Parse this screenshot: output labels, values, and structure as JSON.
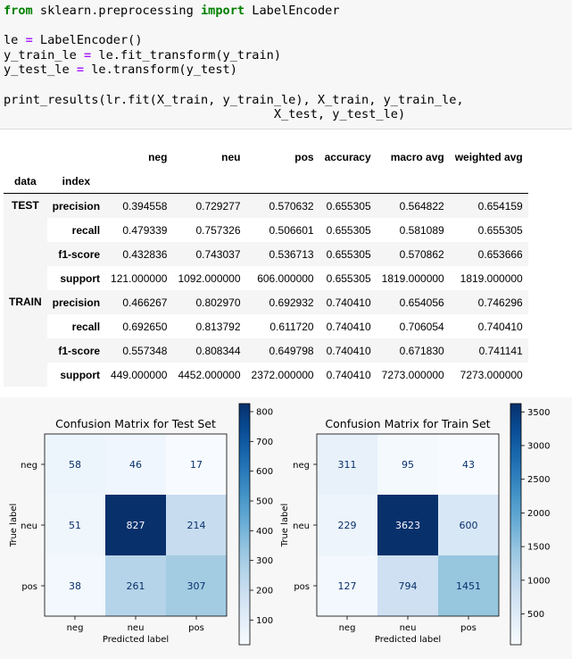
{
  "code": {
    "lines": [
      [
        {
          "t": "from",
          "c": "kw"
        },
        {
          "t": " sklearn.preprocessing "
        },
        {
          "t": "import",
          "c": "kw"
        },
        {
          "t": " LabelEncoder"
        }
      ],
      [],
      [
        {
          "t": "le "
        },
        {
          "t": "=",
          "c": "op"
        },
        {
          "t": " LabelEncoder()"
        }
      ],
      [
        {
          "t": "y_train_le "
        },
        {
          "t": "=",
          "c": "op"
        },
        {
          "t": " le.fit_transform(y_train)"
        }
      ],
      [
        {
          "t": "y_test_le "
        },
        {
          "t": "=",
          "c": "op"
        },
        {
          "t": " le.transform(y_test)"
        }
      ],
      [],
      [
        {
          "t": "print_results(lr.fit(X_train, y_train_le), X_train, y_train_le,"
        }
      ],
      [
        {
          "t": "                                     X_test, y_test_le)"
        }
      ]
    ]
  },
  "table": {
    "columns": [
      "neg",
      "neu",
      "pos",
      "accuracy",
      "macro avg",
      "weighted avg"
    ],
    "index_names": [
      "data",
      "index"
    ],
    "groups": [
      {
        "label": "TEST",
        "rows": [
          {
            "index": "precision",
            "values": [
              "0.394558",
              "0.729277",
              "0.570632",
              "0.655305",
              "0.564822",
              "0.654159"
            ]
          },
          {
            "index": "recall",
            "values": [
              "0.479339",
              "0.757326",
              "0.506601",
              "0.655305",
              "0.581089",
              "0.655305"
            ]
          },
          {
            "index": "f1-score",
            "values": [
              "0.432836",
              "0.743037",
              "0.536713",
              "0.655305",
              "0.570862",
              "0.653666"
            ]
          },
          {
            "index": "support",
            "values": [
              "121.000000",
              "1092.000000",
              "606.000000",
              "0.655305",
              "1819.000000",
              "1819.000000"
            ]
          }
        ]
      },
      {
        "label": "TRAIN",
        "rows": [
          {
            "index": "precision",
            "values": [
              "0.466267",
              "0.802970",
              "0.692932",
              "0.740410",
              "0.654056",
              "0.746296"
            ]
          },
          {
            "index": "recall",
            "values": [
              "0.692650",
              "0.813792",
              "0.611720",
              "0.740410",
              "0.706054",
              "0.740410"
            ]
          },
          {
            "index": "f1-score",
            "values": [
              "0.557348",
              "0.808344",
              "0.649798",
              "0.740410",
              "0.671830",
              "0.741141"
            ]
          },
          {
            "index": "support",
            "values": [
              "449.000000",
              "4452.000000",
              "2372.000000",
              "0.740410",
              "7273.000000",
              "7273.000000"
            ]
          }
        ]
      }
    ]
  },
  "chart_data": [
    {
      "type": "heatmap",
      "title": "Confusion Matrix for Test Set",
      "xlabel": "Predicted label",
      "ylabel": "True label",
      "x_categories": [
        "neg",
        "neu",
        "pos"
      ],
      "y_categories": [
        "neg",
        "neu",
        "pos"
      ],
      "values": [
        [
          58,
          46,
          17
        ],
        [
          51,
          827,
          214
        ],
        [
          38,
          261,
          307
        ]
      ],
      "colormap": "Blues",
      "colorbar_ticks": [
        100,
        200,
        300,
        400,
        500,
        600,
        700,
        800
      ],
      "vmin": 17,
      "vmax": 827
    },
    {
      "type": "heatmap",
      "title": "Confusion Matrix for Train Set",
      "xlabel": "Predicted label",
      "ylabel": "True label",
      "x_categories": [
        "neg",
        "neu",
        "pos"
      ],
      "y_categories": [
        "neg",
        "neu",
        "pos"
      ],
      "values": [
        [
          311,
          95,
          43
        ],
        [
          229,
          3623,
          600
        ],
        [
          127,
          794,
          1451
        ]
      ],
      "colormap": "Blues",
      "colorbar_ticks": [
        500,
        1000,
        1500,
        2000,
        2500,
        3000,
        3500
      ],
      "vmin": 43,
      "vmax": 3623
    }
  ]
}
